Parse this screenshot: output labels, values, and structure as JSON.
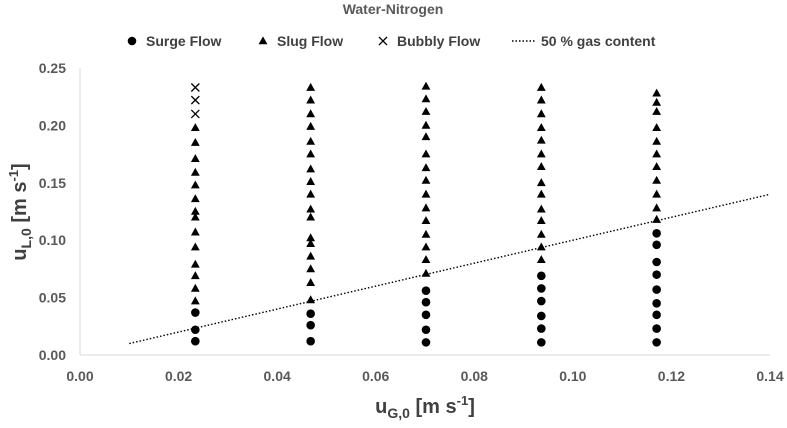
{
  "chart_data": {
    "type": "scatter",
    "title": "Water-Nitrogen",
    "xlabel": {
      "main": "u",
      "sub": "G,0",
      "unit_before": " [m s",
      "unit_sup": "-1",
      "unit_after": "]"
    },
    "ylabel": {
      "main": "u",
      "sub": "L,0",
      "unit_before": " [m s",
      "unit_sup": "-1",
      "unit_after": "]"
    },
    "xlim": [
      0,
      0.14
    ],
    "ylim": [
      0,
      0.25
    ],
    "x_ticks": [
      "0.00",
      "0.02",
      "0.04",
      "0.06",
      "0.08",
      "0.10",
      "0.12",
      "0.14"
    ],
    "y_ticks": [
      "0.00",
      "0.05",
      "0.10",
      "0.15",
      "0.20",
      "0.25"
    ],
    "grid": false,
    "legend_position": "top",
    "series": [
      {
        "name": "Surge Flow",
        "marker": "circle",
        "color": "#000000",
        "points": [
          [
            0.0234,
            0.012
          ],
          [
            0.0234,
            0.022
          ],
          [
            0.0234,
            0.037
          ],
          [
            0.0468,
            0.012
          ],
          [
            0.0468,
            0.026
          ],
          [
            0.0468,
            0.036
          ],
          [
            0.0702,
            0.011
          ],
          [
            0.0702,
            0.022
          ],
          [
            0.0702,
            0.035
          ],
          [
            0.0702,
            0.046
          ],
          [
            0.0702,
            0.056
          ],
          [
            0.0936,
            0.011
          ],
          [
            0.0936,
            0.023
          ],
          [
            0.0936,
            0.034
          ],
          [
            0.0936,
            0.047
          ],
          [
            0.0936,
            0.058
          ],
          [
            0.0936,
            0.069
          ],
          [
            0.117,
            0.011
          ],
          [
            0.117,
            0.023
          ],
          [
            0.117,
            0.035
          ],
          [
            0.117,
            0.045
          ],
          [
            0.117,
            0.057
          ],
          [
            0.117,
            0.07
          ],
          [
            0.117,
            0.081
          ],
          [
            0.117,
            0.096
          ],
          [
            0.117,
            0.106
          ]
        ]
      },
      {
        "name": "Slug Flow",
        "marker": "triangle",
        "color": "#000000",
        "points": [
          [
            0.0234,
            0.047
          ],
          [
            0.0234,
            0.058
          ],
          [
            0.0234,
            0.069
          ],
          [
            0.0234,
            0.079
          ],
          [
            0.0234,
            0.094
          ],
          [
            0.0234,
            0.107
          ],
          [
            0.0234,
            0.12
          ],
          [
            0.0234,
            0.125
          ],
          [
            0.0234,
            0.136
          ],
          [
            0.0234,
            0.148
          ],
          [
            0.0234,
            0.159
          ],
          [
            0.0234,
            0.171
          ],
          [
            0.0234,
            0.185
          ],
          [
            0.0234,
            0.198
          ],
          [
            0.0468,
            0.048
          ],
          [
            0.0468,
            0.063
          ],
          [
            0.0468,
            0.075
          ],
          [
            0.0468,
            0.086
          ],
          [
            0.0468,
            0.097
          ],
          [
            0.0468,
            0.102
          ],
          [
            0.0468,
            0.12
          ],
          [
            0.0468,
            0.127
          ],
          [
            0.0468,
            0.14
          ],
          [
            0.0468,
            0.151
          ],
          [
            0.0468,
            0.162
          ],
          [
            0.0468,
            0.175
          ],
          [
            0.0468,
            0.186
          ],
          [
            0.0468,
            0.199
          ],
          [
            0.0468,
            0.21
          ],
          [
            0.0468,
            0.222
          ],
          [
            0.0468,
            0.233
          ],
          [
            0.0702,
            0.071
          ],
          [
            0.0702,
            0.083
          ],
          [
            0.0702,
            0.094
          ],
          [
            0.0702,
            0.105
          ],
          [
            0.0702,
            0.117
          ],
          [
            0.0702,
            0.128
          ],
          [
            0.0702,
            0.14
          ],
          [
            0.0702,
            0.152
          ],
          [
            0.0702,
            0.163
          ],
          [
            0.0702,
            0.175
          ],
          [
            0.0702,
            0.19
          ],
          [
            0.0702,
            0.2
          ],
          [
            0.0702,
            0.212
          ],
          [
            0.0702,
            0.223
          ],
          [
            0.0702,
            0.234
          ],
          [
            0.0936,
            0.083
          ],
          [
            0.0936,
            0.094
          ],
          [
            0.0936,
            0.105
          ],
          [
            0.0936,
            0.117
          ],
          [
            0.0936,
            0.127
          ],
          [
            0.0936,
            0.14
          ],
          [
            0.0936,
            0.15
          ],
          [
            0.0936,
            0.164
          ],
          [
            0.0936,
            0.175
          ],
          [
            0.0936,
            0.187
          ],
          [
            0.0936,
            0.198
          ],
          [
            0.0936,
            0.21
          ],
          [
            0.0936,
            0.222
          ],
          [
            0.0936,
            0.233
          ],
          [
            0.117,
            0.118
          ],
          [
            0.117,
            0.128
          ],
          [
            0.117,
            0.14
          ],
          [
            0.117,
            0.152
          ],
          [
            0.117,
            0.164
          ],
          [
            0.117,
            0.175
          ],
          [
            0.117,
            0.186
          ],
          [
            0.117,
            0.198
          ],
          [
            0.117,
            0.212
          ],
          [
            0.117,
            0.22
          ],
          [
            0.117,
            0.228
          ]
        ]
      },
      {
        "name": "Bubbly Flow",
        "marker": "cross",
        "color": "#000000",
        "points": [
          [
            0.0234,
            0.21
          ],
          [
            0.0234,
            0.222
          ],
          [
            0.0234,
            0.233
          ]
        ]
      },
      {
        "name": "50 % gas content",
        "marker": "dotted-line",
        "color": "#000000",
        "points": [
          [
            0.01,
            0.01
          ],
          [
            0.14,
            0.14
          ]
        ]
      }
    ]
  }
}
